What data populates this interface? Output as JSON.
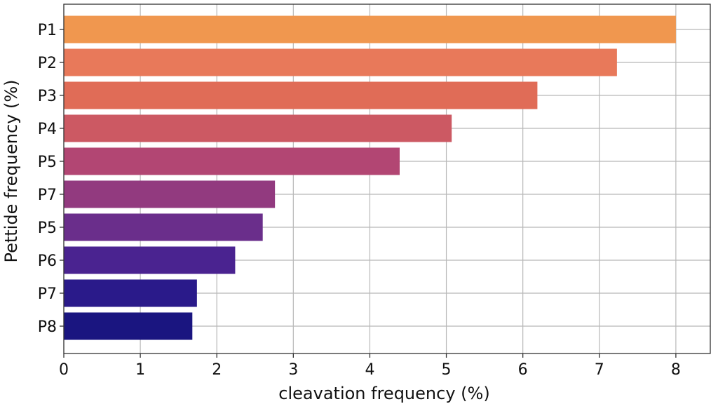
{
  "chart_data": {
    "type": "bar",
    "orientation": "horizontal",
    "title": "",
    "xlabel": "cleavation frequency (%)",
    "ylabel": "Pettide frequency (%)",
    "categories": [
      "P1",
      "P2",
      "P3",
      "P4",
      "P5",
      "P7",
      "P5",
      "P6",
      "P7",
      "P8"
    ],
    "values": [
      8.0,
      7.23,
      6.19,
      5.07,
      4.39,
      2.76,
      2.6,
      2.24,
      1.74,
      1.68
    ],
    "bar_colors": [
      "#f0974f",
      "#e8795a",
      "#e06c57",
      "#cc5963",
      "#b24673",
      "#923a7f",
      "#6a2e8b",
      "#4a2390",
      "#2a1a8a",
      "#1a1580"
    ],
    "xlim": [
      0,
      8.45
    ],
    "xticks": [
      0,
      1,
      2,
      3,
      4,
      5,
      6,
      7,
      8
    ],
    "grid": true,
    "legend": "none"
  }
}
